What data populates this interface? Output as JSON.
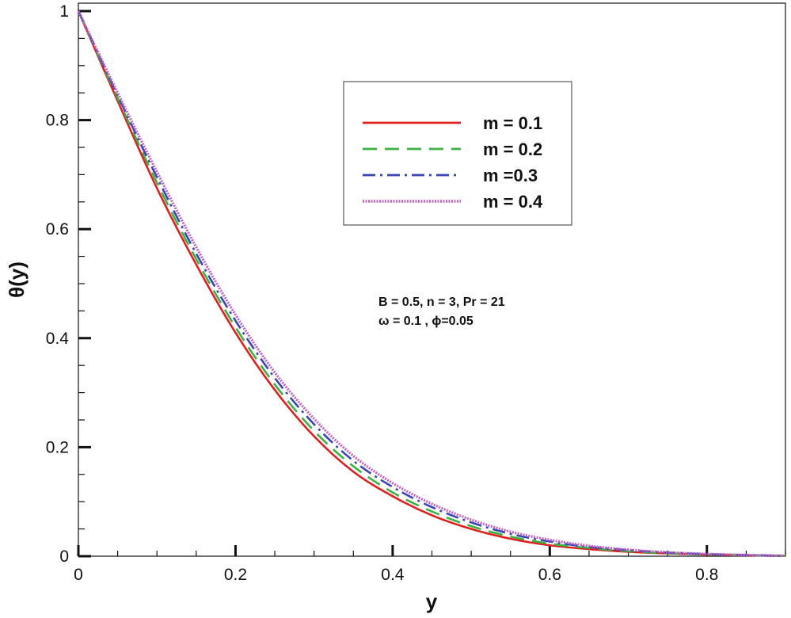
{
  "chart_data": {
    "type": "line",
    "xlabel": "y",
    "ylabel": "θ(y)",
    "xlim": [
      0,
      0.9
    ],
    "ylim": [
      0,
      1
    ],
    "xticks": [
      0,
      0.2,
      0.4,
      0.6,
      0.8
    ],
    "xtick_labels": [
      "0",
      "0.2",
      "0.4",
      "0.6",
      "0.8"
    ],
    "yticks": [
      0,
      0.2,
      0.4,
      0.6,
      0.8,
      1
    ],
    "ytick_labels": [
      "0",
      "0.2",
      "0.4",
      "0.6",
      "0.8",
      "1"
    ],
    "grid": false,
    "legend_position": "top-right",
    "annotations": [
      "B = 0.5,  n = 3,  Pr = 21",
      "ω = 0.1 , ϕ=0.05"
    ],
    "x": [
      0,
      0.05,
      0.1,
      0.15,
      0.2,
      0.25,
      0.3,
      0.35,
      0.4,
      0.45,
      0.5,
      0.55,
      0.6,
      0.65,
      0.7,
      0.75,
      0.8,
      0.85,
      0.9
    ],
    "series": [
      {
        "name": "m = 0.1",
        "color": "#e02020",
        "style": "solid",
        "values": [
          1.0,
          0.835,
          0.675,
          0.535,
          0.41,
          0.305,
          0.22,
          0.155,
          0.11,
          0.075,
          0.05,
          0.032,
          0.02,
          0.013,
          0.008,
          0.005,
          0.003,
          0.0015,
          0.0005
        ]
      },
      {
        "name": "m = 0.2",
        "color": "#3cb043",
        "style": "dashed",
        "values": [
          1.0,
          0.84,
          0.685,
          0.545,
          0.42,
          0.315,
          0.23,
          0.165,
          0.117,
          0.082,
          0.055,
          0.036,
          0.023,
          0.015,
          0.009,
          0.0055,
          0.0033,
          0.0018,
          0.0006
        ]
      },
      {
        "name": "m =0.3",
        "color": "#3a44b4",
        "style": "dashdot",
        "values": [
          1.0,
          0.845,
          0.695,
          0.555,
          0.432,
          0.327,
          0.242,
          0.175,
          0.127,
          0.09,
          0.062,
          0.041,
          0.027,
          0.017,
          0.011,
          0.0065,
          0.0038,
          0.002,
          0.0007
        ]
      },
      {
        "name": "m = 0.4",
        "color": "#c060c0",
        "style": "dotted",
        "values": [
          1.0,
          0.85,
          0.705,
          0.567,
          0.443,
          0.337,
          0.252,
          0.184,
          0.134,
          0.096,
          0.067,
          0.045,
          0.03,
          0.019,
          0.012,
          0.0072,
          0.0042,
          0.0022,
          0.0008
        ]
      }
    ]
  }
}
